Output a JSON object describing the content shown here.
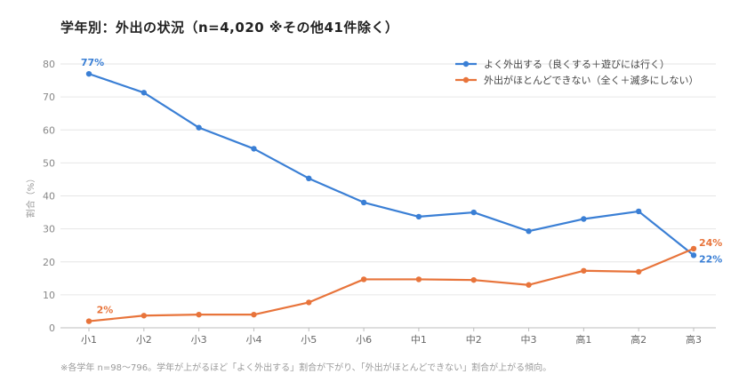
{
  "title": "学年別：外出の状況（n=4,020 ※その他41件除く）",
  "footnote": "※各学年 n=98〜796。学年が上がるほど「よく外出する」割合が下がり、「外出がほとんどできない」割合が上がる傾向。",
  "chart_data": {
    "type": "line",
    "ylabel": "割合（%）",
    "xlabel": "",
    "ylim": [
      0,
      80
    ],
    "yticks": [
      0,
      10,
      20,
      30,
      40,
      50,
      60,
      70,
      80
    ],
    "grid": true,
    "legend_position": "top-right",
    "categories": [
      "小1",
      "小2",
      "小3",
      "小4",
      "小5",
      "小6",
      "中1",
      "中2",
      "中3",
      "高1",
      "高2",
      "高3"
    ],
    "series": [
      {
        "name": "よく外出する（良くする＋遊びには行く）",
        "color": "#3a7fd5",
        "values": [
          77,
          71.3,
          60.7,
          54.3,
          45.3,
          38,
          33.7,
          35,
          29.3,
          33,
          35.3,
          22
        ],
        "labels": [
          {
            "index": 0,
            "text": "77%"
          },
          {
            "index": 11,
            "text": "22%"
          }
        ]
      },
      {
        "name": "外出がほとんどできない（全く＋滅多にしない）",
        "color": "#e8743b",
        "values": [
          2,
          3.7,
          4,
          4,
          7.7,
          14.7,
          14.7,
          14.5,
          13,
          17.3,
          17,
          24
        ],
        "labels": [
          {
            "index": 0,
            "text": "2%"
          },
          {
            "index": 11,
            "text": "24%"
          }
        ]
      }
    ]
  }
}
